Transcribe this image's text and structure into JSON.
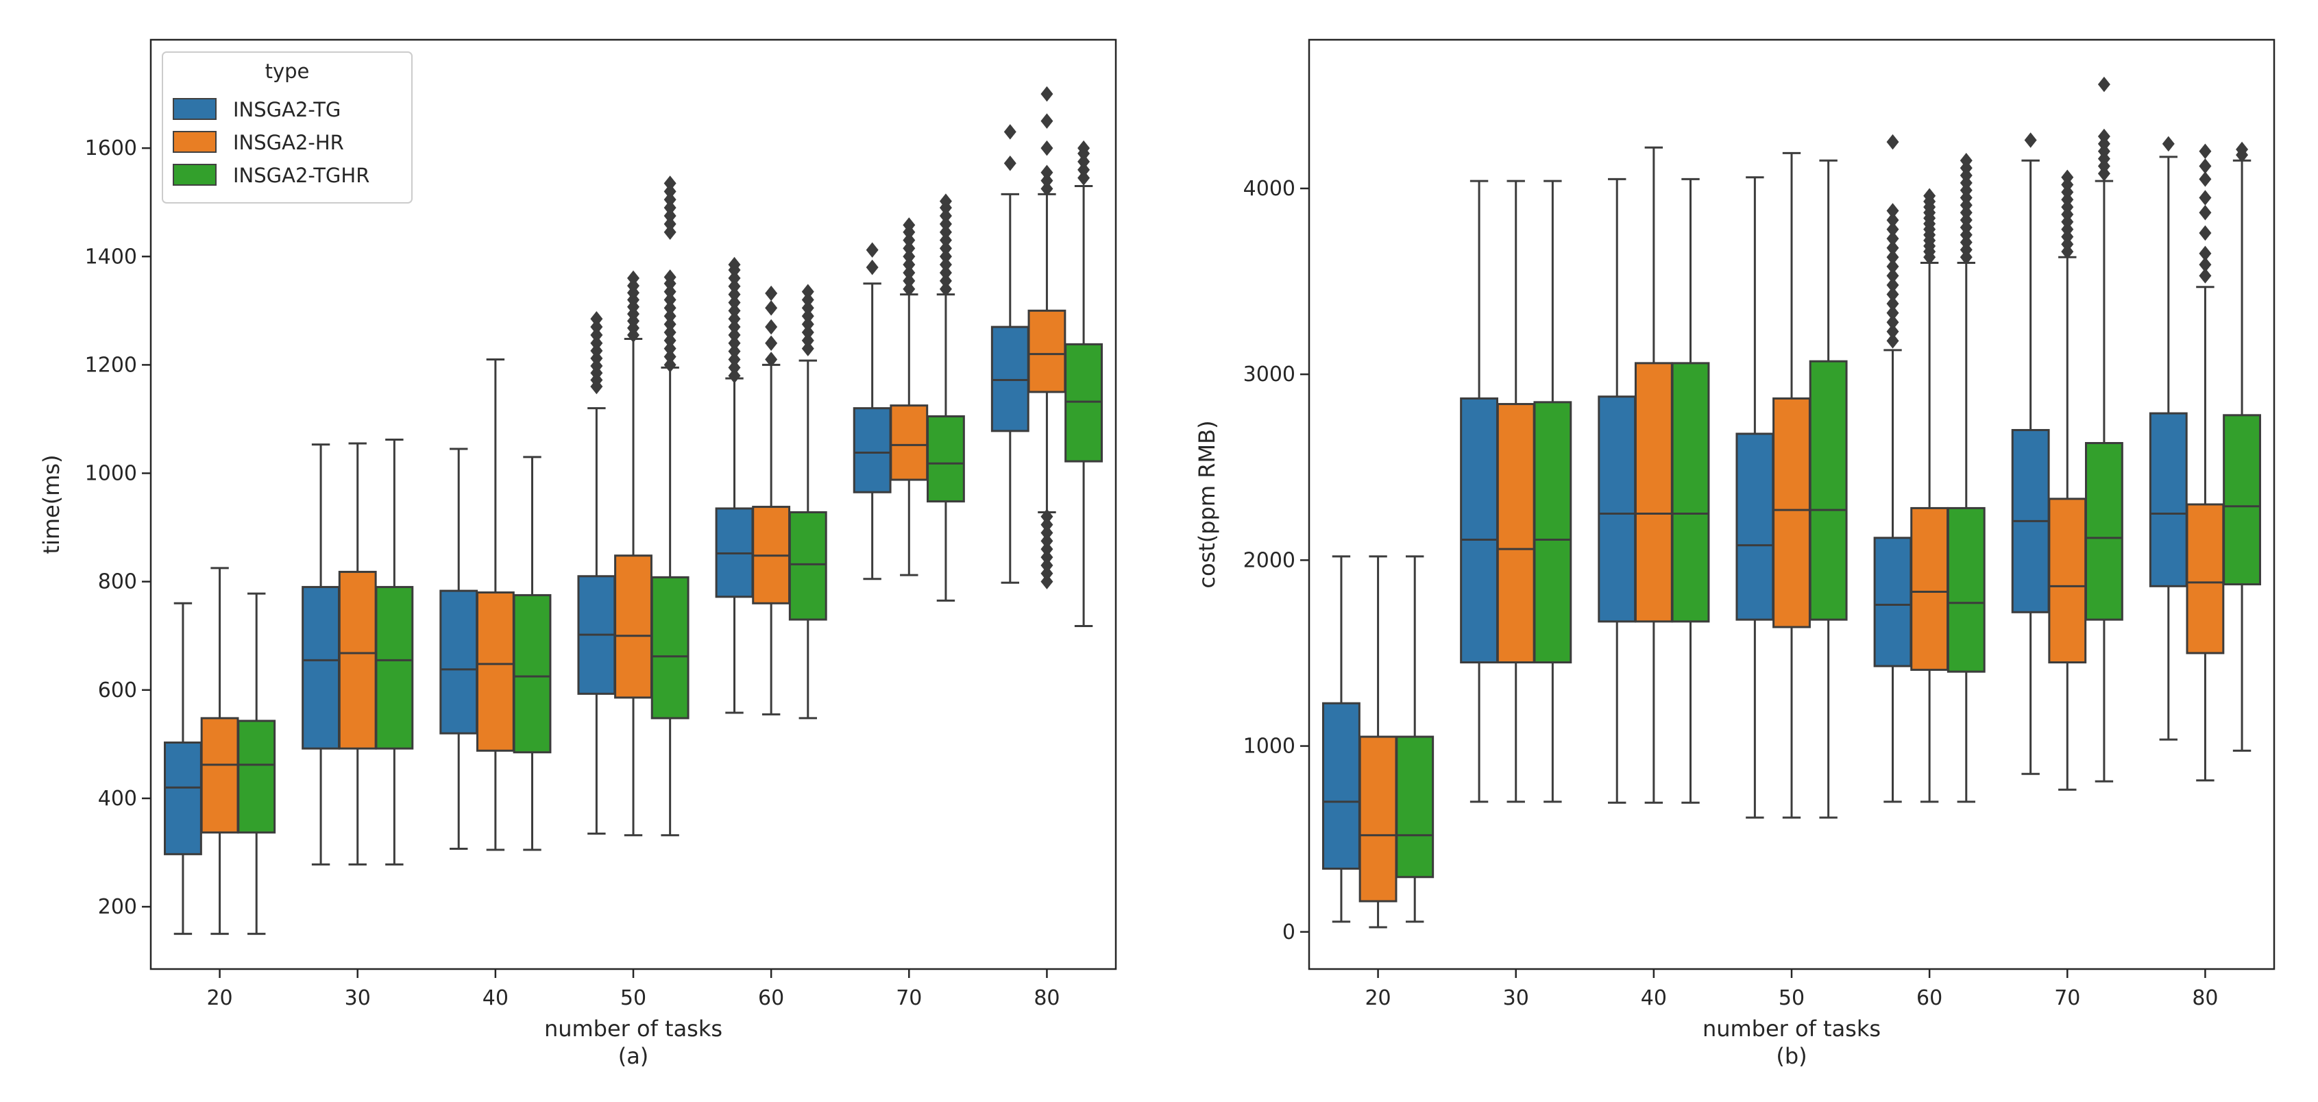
{
  "figure": {
    "panels": [
      "a",
      "b"
    ]
  },
  "chart_data": [
    {
      "type": "box",
      "caption": "(a)",
      "xlabel": "number of tasks",
      "ylabel": "time(ms)",
      "ylim": [
        85,
        1800
      ],
      "yticks": [
        200,
        400,
        600,
        800,
        1000,
        1200,
        1400,
        1600
      ],
      "categories": [
        "20",
        "30",
        "40",
        "50",
        "60",
        "70",
        "80"
      ],
      "legend": {
        "title": "type",
        "placement": "top-left"
      },
      "series": [
        {
          "name": "INSGA2-TG",
          "color": "#2f74a8",
          "boxes": [
            {
              "whislo": 150,
              "q1": 297,
              "med": 420,
              "q3": 503,
              "whishi": 760,
              "fliers": []
            },
            {
              "whislo": 278,
              "q1": 492,
              "med": 655,
              "q3": 790,
              "whishi": 1053,
              "fliers": []
            },
            {
              "whislo": 307,
              "q1": 520,
              "med": 638,
              "q3": 783,
              "whishi": 1045,
              "fliers": []
            },
            {
              "whislo": 335,
              "q1": 593,
              "med": 702,
              "q3": 810,
              "whishi": 1120,
              "fliers": [
                1160,
                1172,
                1185,
                1198,
                1212,
                1226,
                1240,
                1255,
                1270,
                1285
              ]
            },
            {
              "whislo": 558,
              "q1": 772,
              "med": 852,
              "q3": 935,
              "whishi": 1175,
              "fliers": [
                1180,
                1195,
                1210,
                1225,
                1240,
                1255,
                1270,
                1285,
                1300,
                1315,
                1330,
                1345,
                1360,
                1375,
                1385
              ]
            },
            {
              "whislo": 805,
              "q1": 965,
              "med": 1038,
              "q3": 1120,
              "whishi": 1350,
              "fliers": [
                1380,
                1412
              ]
            },
            {
              "whislo": 798,
              "q1": 1078,
              "med": 1172,
              "q3": 1270,
              "whishi": 1515,
              "fliers": [
                1572,
                1630
              ]
            }
          ]
        },
        {
          "name": "INSGA2-HR",
          "color": "#e87e24",
          "boxes": [
            {
              "whislo": 150,
              "q1": 337,
              "med": 462,
              "q3": 548,
              "whishi": 825,
              "fliers": []
            },
            {
              "whislo": 278,
              "q1": 492,
              "med": 668,
              "q3": 818,
              "whishi": 1055,
              "fliers": []
            },
            {
              "whislo": 305,
              "q1": 488,
              "med": 648,
              "q3": 780,
              "whishi": 1210,
              "fliers": []
            },
            {
              "whislo": 332,
              "q1": 586,
              "med": 700,
              "q3": 848,
              "whishi": 1248,
              "fliers": [
                1255,
                1268,
                1281,
                1294,
                1307,
                1320,
                1333,
                1346,
                1360
              ]
            },
            {
              "whislo": 555,
              "q1": 760,
              "med": 848,
              "q3": 938,
              "whishi": 1200,
              "fliers": [
                1210,
                1240,
                1270,
                1305,
                1332
              ]
            },
            {
              "whislo": 812,
              "q1": 988,
              "med": 1052,
              "q3": 1125,
              "whishi": 1330,
              "fliers": [
                1340,
                1355,
                1370,
                1385,
                1400,
                1415,
                1430,
                1445,
                1458
              ]
            },
            {
              "whislo": 928,
              "q1": 1150,
              "med": 1220,
              "q3": 1300,
              "whishi": 1515,
              "fliers": [
                800,
                815,
                830,
                845,
                860,
                875,
                890,
                905,
                920,
                1525,
                1540,
                1555,
                1600,
                1650,
                1700
              ]
            }
          ]
        },
        {
          "name": "INSGA2-TGHR",
          "color": "#33a02c",
          "boxes": [
            {
              "whislo": 150,
              "q1": 337,
              "med": 462,
              "q3": 543,
              "whishi": 778,
              "fliers": []
            },
            {
              "whislo": 278,
              "q1": 492,
              "med": 655,
              "q3": 790,
              "whishi": 1062,
              "fliers": []
            },
            {
              "whislo": 305,
              "q1": 485,
              "med": 625,
              "q3": 775,
              "whishi": 1030,
              "fliers": []
            },
            {
              "whislo": 332,
              "q1": 548,
              "med": 662,
              "q3": 808,
              "whishi": 1195,
              "fliers": [
                1200,
                1215,
                1230,
                1245,
                1260,
                1275,
                1290,
                1305,
                1320,
                1335,
                1350,
                1362,
                1445,
                1460,
                1475,
                1490,
                1505,
                1520,
                1535
              ]
            },
            {
              "whislo": 548,
              "q1": 730,
              "med": 832,
              "q3": 928,
              "whishi": 1208,
              "fliers": [
                1230,
                1245,
                1260,
                1275,
                1290,
                1305,
                1320,
                1335
              ]
            },
            {
              "whislo": 765,
              "q1": 948,
              "med": 1018,
              "q3": 1105,
              "whishi": 1330,
              "fliers": [
                1340,
                1355,
                1370,
                1385,
                1400,
                1415,
                1430,
                1445,
                1460,
                1475,
                1490,
                1502
              ]
            },
            {
              "whislo": 718,
              "q1": 1022,
              "med": 1132,
              "q3": 1238,
              "whishi": 1530,
              "fliers": [
                1545,
                1560,
                1575,
                1590,
                1600
              ]
            }
          ]
        }
      ]
    },
    {
      "type": "box",
      "caption": "(b)",
      "xlabel": "number of tasks",
      "ylabel": "cost(ppm RMB)",
      "ylim": [
        -200,
        4800
      ],
      "yticks": [
        0,
        1000,
        2000,
        3000,
        4000
      ],
      "categories": [
        "20",
        "30",
        "40",
        "50",
        "60",
        "70",
        "80"
      ],
      "series": [
        {
          "name": "INSGA2-TG",
          "color": "#2f74a8",
          "boxes": [
            {
              "whislo": 55,
              "q1": 340,
              "med": 700,
              "q3": 1230,
              "whishi": 2020,
              "fliers": []
            },
            {
              "whislo": 700,
              "q1": 1450,
              "med": 2110,
              "q3": 2870,
              "whishi": 4040,
              "fliers": []
            },
            {
              "whislo": 695,
              "q1": 1670,
              "med": 2250,
              "q3": 2880,
              "whishi": 4050,
              "fliers": []
            },
            {
              "whislo": 615,
              "q1": 1680,
              "med": 2080,
              "q3": 2680,
              "whishi": 4060,
              "fliers": []
            },
            {
              "whislo": 700,
              "q1": 1430,
              "med": 1760,
              "q3": 2120,
              "whishi": 3130,
              "fliers": [
                3180,
                3230,
                3280,
                3330,
                3380,
                3430,
                3480,
                3530,
                3580,
                3630,
                3680,
                3730,
                3780,
                3830,
                3880,
                4250
              ]
            },
            {
              "whislo": 850,
              "q1": 1720,
              "med": 2210,
              "q3": 2700,
              "whishi": 4150,
              "fliers": [
                4260
              ]
            },
            {
              "whislo": 1035,
              "q1": 1860,
              "med": 2250,
              "q3": 2790,
              "whishi": 4170,
              "fliers": [
                4240
              ]
            }
          ]
        },
        {
          "name": "INSGA2-HR",
          "color": "#e87e24",
          "boxes": [
            {
              "whislo": 25,
              "q1": 165,
              "med": 520,
              "q3": 1050,
              "whishi": 2020,
              "fliers": []
            },
            {
              "whislo": 700,
              "q1": 1450,
              "med": 2060,
              "q3": 2840,
              "whishi": 4040,
              "fliers": []
            },
            {
              "whislo": 695,
              "q1": 1670,
              "med": 2250,
              "q3": 3060,
              "whishi": 4220,
              "fliers": []
            },
            {
              "whislo": 615,
              "q1": 1640,
              "med": 2270,
              "q3": 2870,
              "whishi": 4190,
              "fliers": []
            },
            {
              "whislo": 700,
              "q1": 1410,
              "med": 1830,
              "q3": 2280,
              "whishi": 3600,
              "fliers": [
                3630,
                3660,
                3690,
                3720,
                3750,
                3780,
                3810,
                3840,
                3870,
                3900,
                3930,
                3960
              ]
            },
            {
              "whislo": 765,
              "q1": 1450,
              "med": 1860,
              "q3": 2330,
              "whishi": 3630,
              "fliers": [
                3660,
                3700,
                3740,
                3780,
                3820,
                3860,
                3900,
                3940,
                3980,
                4020,
                4060
              ]
            },
            {
              "whislo": 815,
              "q1": 1500,
              "med": 1880,
              "q3": 2300,
              "whishi": 3470,
              "fliers": [
                3530,
                3590,
                3650,
                3760,
                3870,
                3950,
                4050,
                4120,
                4200
              ]
            }
          ]
        },
        {
          "name": "INSGA2-TGHR",
          "color": "#33a02c",
          "boxes": [
            {
              "whislo": 55,
              "q1": 295,
              "med": 520,
              "q3": 1050,
              "whishi": 2020,
              "fliers": []
            },
            {
              "whislo": 700,
              "q1": 1450,
              "med": 2110,
              "q3": 2850,
              "whishi": 4040,
              "fliers": []
            },
            {
              "whislo": 695,
              "q1": 1670,
              "med": 2250,
              "q3": 3060,
              "whishi": 4050,
              "fliers": []
            },
            {
              "whislo": 615,
              "q1": 1680,
              "med": 2270,
              "q3": 3070,
              "whishi": 4150,
              "fliers": []
            },
            {
              "whislo": 700,
              "q1": 1400,
              "med": 1770,
              "q3": 2280,
              "whishi": 3600,
              "fliers": [
                3630,
                3670,
                3710,
                3750,
                3790,
                3830,
                3870,
                3910,
                3950,
                3990,
                4030,
                4070,
                4110,
                4150
              ]
            },
            {
              "whislo": 810,
              "q1": 1680,
              "med": 2120,
              "q3": 2630,
              "whishi": 4040,
              "fliers": [
                4080,
                4120,
                4160,
                4200,
                4240,
                4280,
                4560
              ]
            },
            {
              "whislo": 975,
              "q1": 1870,
              "med": 2290,
              "q3": 2780,
              "whishi": 4150,
              "fliers": [
                4180,
                4210
              ]
            }
          ]
        }
      ]
    }
  ]
}
